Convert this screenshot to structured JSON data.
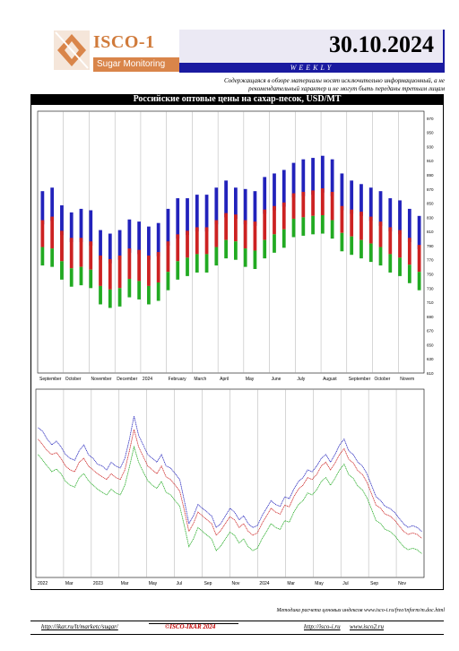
{
  "header": {
    "logo_text": "ISCO-1",
    "logo_sub": "Sugar Monitoring",
    "date": "30.10.2024",
    "weekly": "WEEKLY",
    "disclaimer": "Содержащаяся в обзоре материалы носят исключительно информационный, а не рекомендательный характер и не могут быть переданы третьим лицам"
  },
  "chart_title": "Российские оптовые цены на сахар-песок, USD/MT",
  "colors": {
    "high": "#2222bb",
    "mid": "#cc2222",
    "low": "#22aa22",
    "accent": "#1a1aa0",
    "logo": "#d9854a"
  },
  "footer": {
    "note": "Методика расчета ценовых индексов www.isco-i.ru/free/inform/m.doc.html",
    "link1": "http://ikar.ru/lt/marketc/sugar/",
    "copyright": "©ISCO-IKAR 2024",
    "link2": "http://isco-i.ru",
    "link3": "www.isco2.ru"
  },
  "chart_data": [
    {
      "type": "bar",
      "title": "",
      "ylim": [
        610,
        980
      ],
      "yticks": [
        610,
        630,
        650,
        670,
        690,
        710,
        730,
        750,
        770,
        790,
        810,
        830,
        850,
        870,
        890,
        910,
        930,
        950,
        970
      ],
      "xticks": [
        "September",
        "October",
        "November",
        "December",
        "2024",
        "February",
        "March",
        "April",
        "May",
        "June",
        "July",
        "August",
        "September",
        "October",
        "Novem"
      ],
      "series": [
        {
          "name": "high",
          "values": [
            855,
            860,
            835,
            825,
            830,
            828,
            800,
            795,
            800,
            815,
            812,
            805,
            810,
            830,
            845,
            845,
            850,
            850,
            860,
            870,
            860,
            858,
            855,
            875,
            880,
            885,
            895,
            900,
            902,
            905,
            900,
            880,
            870,
            865,
            860,
            855,
            845,
            842,
            830,
            820
          ]
        },
        {
          "name": "mid",
          "values": [
            820,
            825,
            805,
            795,
            795,
            790,
            770,
            765,
            770,
            780,
            778,
            770,
            775,
            790,
            800,
            805,
            810,
            810,
            820,
            830,
            828,
            820,
            818,
            835,
            840,
            845,
            858,
            860,
            862,
            865,
            860,
            840,
            835,
            832,
            825,
            818,
            810,
            806,
            795,
            785
          ]
        },
        {
          "name": "low",
          "values": [
            780,
            778,
            760,
            750,
            752,
            748,
            725,
            720,
            722,
            735,
            732,
            725,
            730,
            745,
            760,
            765,
            770,
            770,
            780,
            790,
            788,
            778,
            775,
            790,
            798,
            805,
            820,
            822,
            824,
            825,
            818,
            800,
            795,
            790,
            785,
            780,
            770,
            765,
            755,
            745
          ]
        }
      ]
    },
    {
      "type": "line",
      "title": "",
      "ylim": [
        560,
        1050
      ],
      "xticks": [
        "2022",
        "Mar",
        "2023",
        "Mar",
        "May",
        "Jul",
        "Sep",
        "Nov",
        "2024",
        "Mar",
        "May",
        "Jul",
        "Sep",
        "Nov"
      ],
      "series": [
        {
          "name": "high",
          "values": [
            950,
            940,
            920,
            905,
            915,
            900,
            880,
            870,
            865,
            890,
            905,
            880,
            870,
            855,
            850,
            840,
            860,
            850,
            845,
            870,
            920,
            980,
            930,
            905,
            880,
            870,
            860,
            880,
            850,
            845,
            830,
            815,
            760,
            700,
            720,
            750,
            740,
            730,
            720,
            690,
            700,
            720,
            740,
            730,
            710,
            720,
            700,
            690,
            695,
            720,
            740,
            760,
            750,
            745,
            770,
            765,
            790,
            810,
            820,
            840,
            835,
            850,
            870,
            880,
            860,
            880,
            905,
            920,
            890,
            880,
            860,
            850,
            830,
            800,
            770,
            760,
            745,
            740,
            730,
            715,
            700,
            690,
            695,
            690,
            680
          ]
        },
        {
          "name": "mid",
          "values": [
            920,
            905,
            890,
            880,
            885,
            870,
            850,
            840,
            835,
            860,
            870,
            850,
            840,
            830,
            822,
            815,
            830,
            820,
            815,
            840,
            890,
            945,
            900,
            875,
            850,
            840,
            830,
            850,
            822,
            815,
            800,
            785,
            735,
            680,
            700,
            730,
            720,
            710,
            700,
            670,
            682,
            700,
            718,
            710,
            690,
            700,
            680,
            670,
            676,
            700,
            720,
            740,
            730,
            725,
            748,
            744,
            770,
            790,
            800,
            820,
            815,
            828,
            850,
            860,
            840,
            858,
            880,
            895,
            868,
            858,
            838,
            828,
            808,
            778,
            748,
            740,
            725,
            720,
            710,
            695,
            680,
            672,
            676,
            672,
            662
          ]
        },
        {
          "name": "low",
          "values": [
            880,
            865,
            850,
            835,
            842,
            830,
            810,
            800,
            795,
            820,
            830,
            812,
            800,
            790,
            782,
            775,
            790,
            780,
            775,
            800,
            848,
            900,
            860,
            835,
            812,
            800,
            792,
            810,
            782,
            775,
            760,
            745,
            695,
            640,
            660,
            690,
            680,
            670,
            660,
            630,
            642,
            660,
            678,
            670,
            650,
            660,
            640,
            630,
            636,
            660,
            680,
            700,
            690,
            685,
            708,
            704,
            730,
            750,
            760,
            780,
            775,
            788,
            810,
            820,
            800,
            818,
            840,
            855,
            828,
            818,
            798,
            788,
            768,
            738,
            708,
            700,
            685,
            680,
            670,
            655,
            640,
            632,
            636,
            632,
            622
          ]
        }
      ]
    }
  ]
}
